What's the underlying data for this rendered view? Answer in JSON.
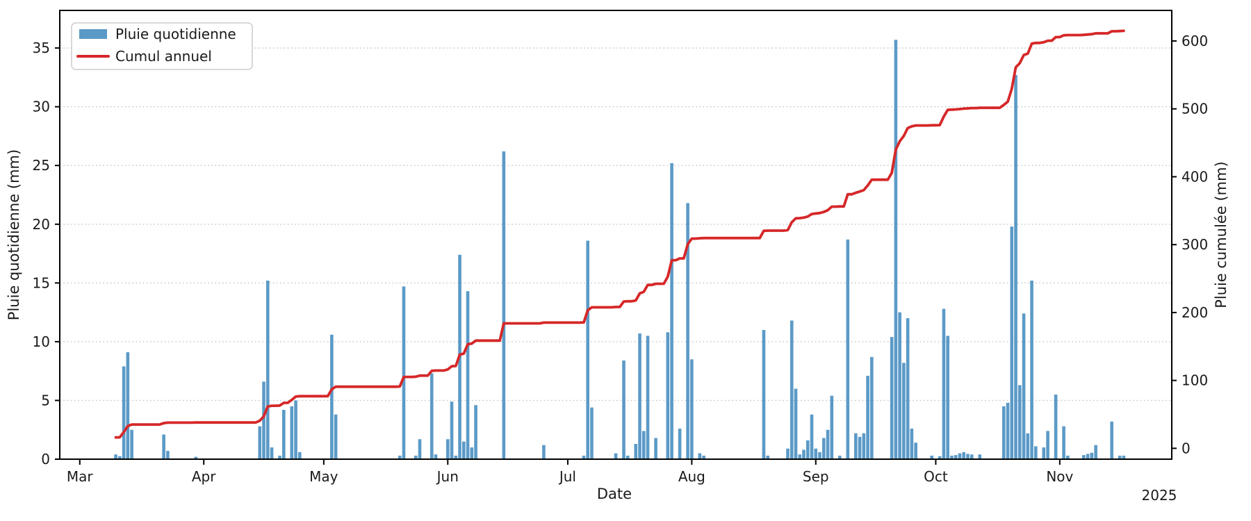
{
  "chart_data": {
    "type": "bar",
    "title": "",
    "xlabel": "Date",
    "x_offset_label": "2025",
    "x_domain": [
      "2025-02-24",
      "2025-11-29"
    ],
    "x_tick_months": [
      "Mar",
      "Apr",
      "May",
      "Jun",
      "Jul",
      "Aug",
      "Sep",
      "Oct",
      "Nov"
    ],
    "y_left": {
      "label": "Pluie quotidienne (mm)",
      "ticks": [
        0,
        5,
        10,
        15,
        20,
        25,
        30,
        35
      ],
      "lim": [
        0,
        38.2
      ]
    },
    "y_right": {
      "label": "Pluie cumulée (mm)",
      "ticks": [
        0,
        100,
        200,
        300,
        400,
        500,
        600
      ],
      "lim": [
        -16,
        645
      ]
    },
    "legend": {
      "position": "upper-left",
      "items": [
        {
          "label": "Pluie quotidienne",
          "marker": "bar",
          "color": "#5b9ac7"
        },
        {
          "label": "Cumul annuel",
          "marker": "line",
          "color": "#d62728"
        }
      ]
    },
    "grid": "horizontal-dotted",
    "series_names": [
      "Pluie quotidienne (mm/jour)",
      "Cumul annuel (mm)"
    ],
    "records": [
      [
        "2025-03-10",
        0.4,
        16.0
      ],
      [
        "2025-03-11",
        0.25,
        16.2
      ],
      [
        "2025-03-12",
        7.9,
        23.9
      ],
      [
        "2025-03-13",
        9.1,
        32.7
      ],
      [
        "2025-03-14",
        2.5,
        35.1
      ],
      [
        "2025-03-22",
        2.1,
        37.1
      ],
      [
        "2025-03-23",
        0.7,
        37.8
      ],
      [
        "2025-03-30",
        0.2,
        38.0
      ],
      [
        "2025-04-15",
        2.8,
        40.7
      ],
      [
        "2025-04-16",
        6.6,
        47.0
      ],
      [
        "2025-04-17",
        15.2,
        61.7
      ],
      [
        "2025-04-18",
        1.0,
        62.7
      ],
      [
        "2025-04-20",
        0.3,
        63.0
      ],
      [
        "2025-04-21",
        4.2,
        67.0
      ],
      [
        "2025-04-23",
        4.5,
        71.4
      ],
      [
        "2025-04-24",
        5.0,
        76.2
      ],
      [
        "2025-04-25",
        0.6,
        76.8
      ],
      [
        "2025-05-03",
        10.6,
        87.0
      ],
      [
        "2025-05-04",
        3.8,
        90.7
      ],
      [
        "2025-05-20",
        0.3,
        91.0
      ],
      [
        "2025-05-21",
        14.7,
        105.2
      ],
      [
        "2025-05-24",
        0.3,
        105.5
      ],
      [
        "2025-05-25",
        1.7,
        107.1
      ],
      [
        "2025-05-28",
        7.3,
        114.2
      ],
      [
        "2025-05-29",
        0.4,
        114.6
      ],
      [
        "2025-06-01",
        1.7,
        116.2
      ],
      [
        "2025-06-02",
        4.9,
        120.9
      ],
      [
        "2025-06-03",
        0.3,
        121.2
      ],
      [
        "2025-06-04",
        17.4,
        138.0
      ],
      [
        "2025-06-05",
        1.5,
        139.5
      ],
      [
        "2025-06-06",
        14.3,
        153.3
      ],
      [
        "2025-06-07",
        1.0,
        154.3
      ],
      [
        "2025-06-08",
        4.6,
        158.7
      ],
      [
        "2025-06-15",
        26.2,
        184.0
      ],
      [
        "2025-06-25",
        1.2,
        185.2
      ],
      [
        "2025-07-05",
        0.3,
        185.5
      ],
      [
        "2025-07-06",
        18.6,
        203.4
      ],
      [
        "2025-07-07",
        4.4,
        207.7
      ],
      [
        "2025-07-13",
        0.5,
        208.2
      ],
      [
        "2025-07-15",
        8.4,
        216.3
      ],
      [
        "2025-07-16",
        0.3,
        216.6
      ],
      [
        "2025-07-18",
        1.3,
        217.8
      ],
      [
        "2025-07-19",
        10.7,
        228.2
      ],
      [
        "2025-07-20",
        2.4,
        230.5
      ],
      [
        "2025-07-21",
        10.5,
        240.6
      ],
      [
        "2025-07-23",
        1.8,
        242.4
      ],
      [
        "2025-07-26",
        10.8,
        252.8
      ],
      [
        "2025-07-27",
        25.2,
        277.1
      ],
      [
        "2025-07-29",
        2.6,
        279.7
      ],
      [
        "2025-07-31",
        21.8,
        300.7
      ],
      [
        "2025-08-01",
        8.5,
        308.9
      ],
      [
        "2025-08-03",
        0.5,
        309.4
      ],
      [
        "2025-08-04",
        0.3,
        309.7
      ],
      [
        "2025-08-19",
        11.0,
        320.3
      ],
      [
        "2025-08-20",
        0.3,
        320.6
      ],
      [
        "2025-08-25",
        0.9,
        321.5
      ],
      [
        "2025-08-26",
        11.8,
        332.9
      ],
      [
        "2025-08-27",
        6.0,
        338.7
      ],
      [
        "2025-08-28",
        0.4,
        339.1
      ],
      [
        "2025-08-29",
        0.8,
        339.8
      ],
      [
        "2025-08-30",
        1.6,
        341.4
      ],
      [
        "2025-08-31",
        3.8,
        345.1
      ],
      [
        "2025-09-01",
        0.9,
        345.9
      ],
      [
        "2025-09-02",
        0.6,
        346.5
      ],
      [
        "2025-09-03",
        1.8,
        348.2
      ],
      [
        "2025-09-04",
        2.5,
        350.7
      ],
      [
        "2025-09-05",
        5.4,
        355.9
      ],
      [
        "2025-09-07",
        0.3,
        356.2
      ],
      [
        "2025-09-09",
        18.7,
        374.2
      ],
      [
        "2025-09-11",
        2.2,
        376.4
      ],
      [
        "2025-09-12",
        1.9,
        378.2
      ],
      [
        "2025-09-13",
        2.2,
        380.3
      ],
      [
        "2025-09-14",
        7.1,
        387.2
      ],
      [
        "2025-09-15",
        8.7,
        395.6
      ],
      [
        "2025-09-20",
        10.4,
        405.6
      ],
      [
        "2025-09-21",
        35.7,
        440.1
      ],
      [
        "2025-09-22",
        12.5,
        452.2
      ],
      [
        "2025-09-23",
        8.2,
        460.1
      ],
      [
        "2025-09-24",
        12.0,
        471.7
      ],
      [
        "2025-09-25",
        2.6,
        474.2
      ],
      [
        "2025-09-26",
        1.4,
        475.6
      ],
      [
        "2025-09-30",
        0.3,
        475.9
      ],
      [
        "2025-10-02",
        0.25,
        476.1
      ],
      [
        "2025-10-03",
        12.8,
        488.5
      ],
      [
        "2025-10-04",
        10.5,
        498.6
      ],
      [
        "2025-10-05",
        0.3,
        498.9
      ],
      [
        "2025-10-06",
        0.35,
        499.2
      ],
      [
        "2025-10-07",
        0.5,
        499.7
      ],
      [
        "2025-10-08",
        0.6,
        500.3
      ],
      [
        "2025-10-09",
        0.45,
        500.7
      ],
      [
        "2025-10-10",
        0.4,
        501.1
      ],
      [
        "2025-10-12",
        0.4,
        501.5
      ],
      [
        "2025-10-18",
        4.5,
        505.8
      ],
      [
        "2025-10-19",
        4.8,
        510.5
      ],
      [
        "2025-10-20",
        19.8,
        529.6
      ],
      [
        "2025-10-21",
        32.7,
        561.2
      ],
      [
        "2025-10-22",
        6.3,
        567.3
      ],
      [
        "2025-10-23",
        12.4,
        579.3
      ],
      [
        "2025-10-24",
        2.2,
        581.4
      ],
      [
        "2025-10-25",
        15.2,
        596.1
      ],
      [
        "2025-10-26",
        1.1,
        597.1
      ],
      [
        "2025-10-28",
        1.0,
        598.1
      ],
      [
        "2025-10-29",
        2.4,
        600.4
      ],
      [
        "2025-10-31",
        5.5,
        605.7
      ],
      [
        "2025-11-02",
        2.8,
        608.4
      ],
      [
        "2025-11-03",
        0.3,
        608.7
      ],
      [
        "2025-11-07",
        0.35,
        609.0
      ],
      [
        "2025-11-08",
        0.45,
        609.5
      ],
      [
        "2025-11-09",
        0.55,
        610.0
      ],
      [
        "2025-11-10",
        1.2,
        611.2
      ],
      [
        "2025-11-14",
        3.2,
        614.3
      ],
      [
        "2025-11-16",
        0.3,
        614.6
      ],
      [
        "2025-11-17",
        0.3,
        614.9
      ]
    ],
    "colors": {
      "bars": "#5b9ac7",
      "line": "#d62728",
      "grid": "#c9c9c9",
      "spine": "#000000",
      "text": "#1a1a1a",
      "background": "#ffffff",
      "legend_border": "#cccccc"
    }
  }
}
